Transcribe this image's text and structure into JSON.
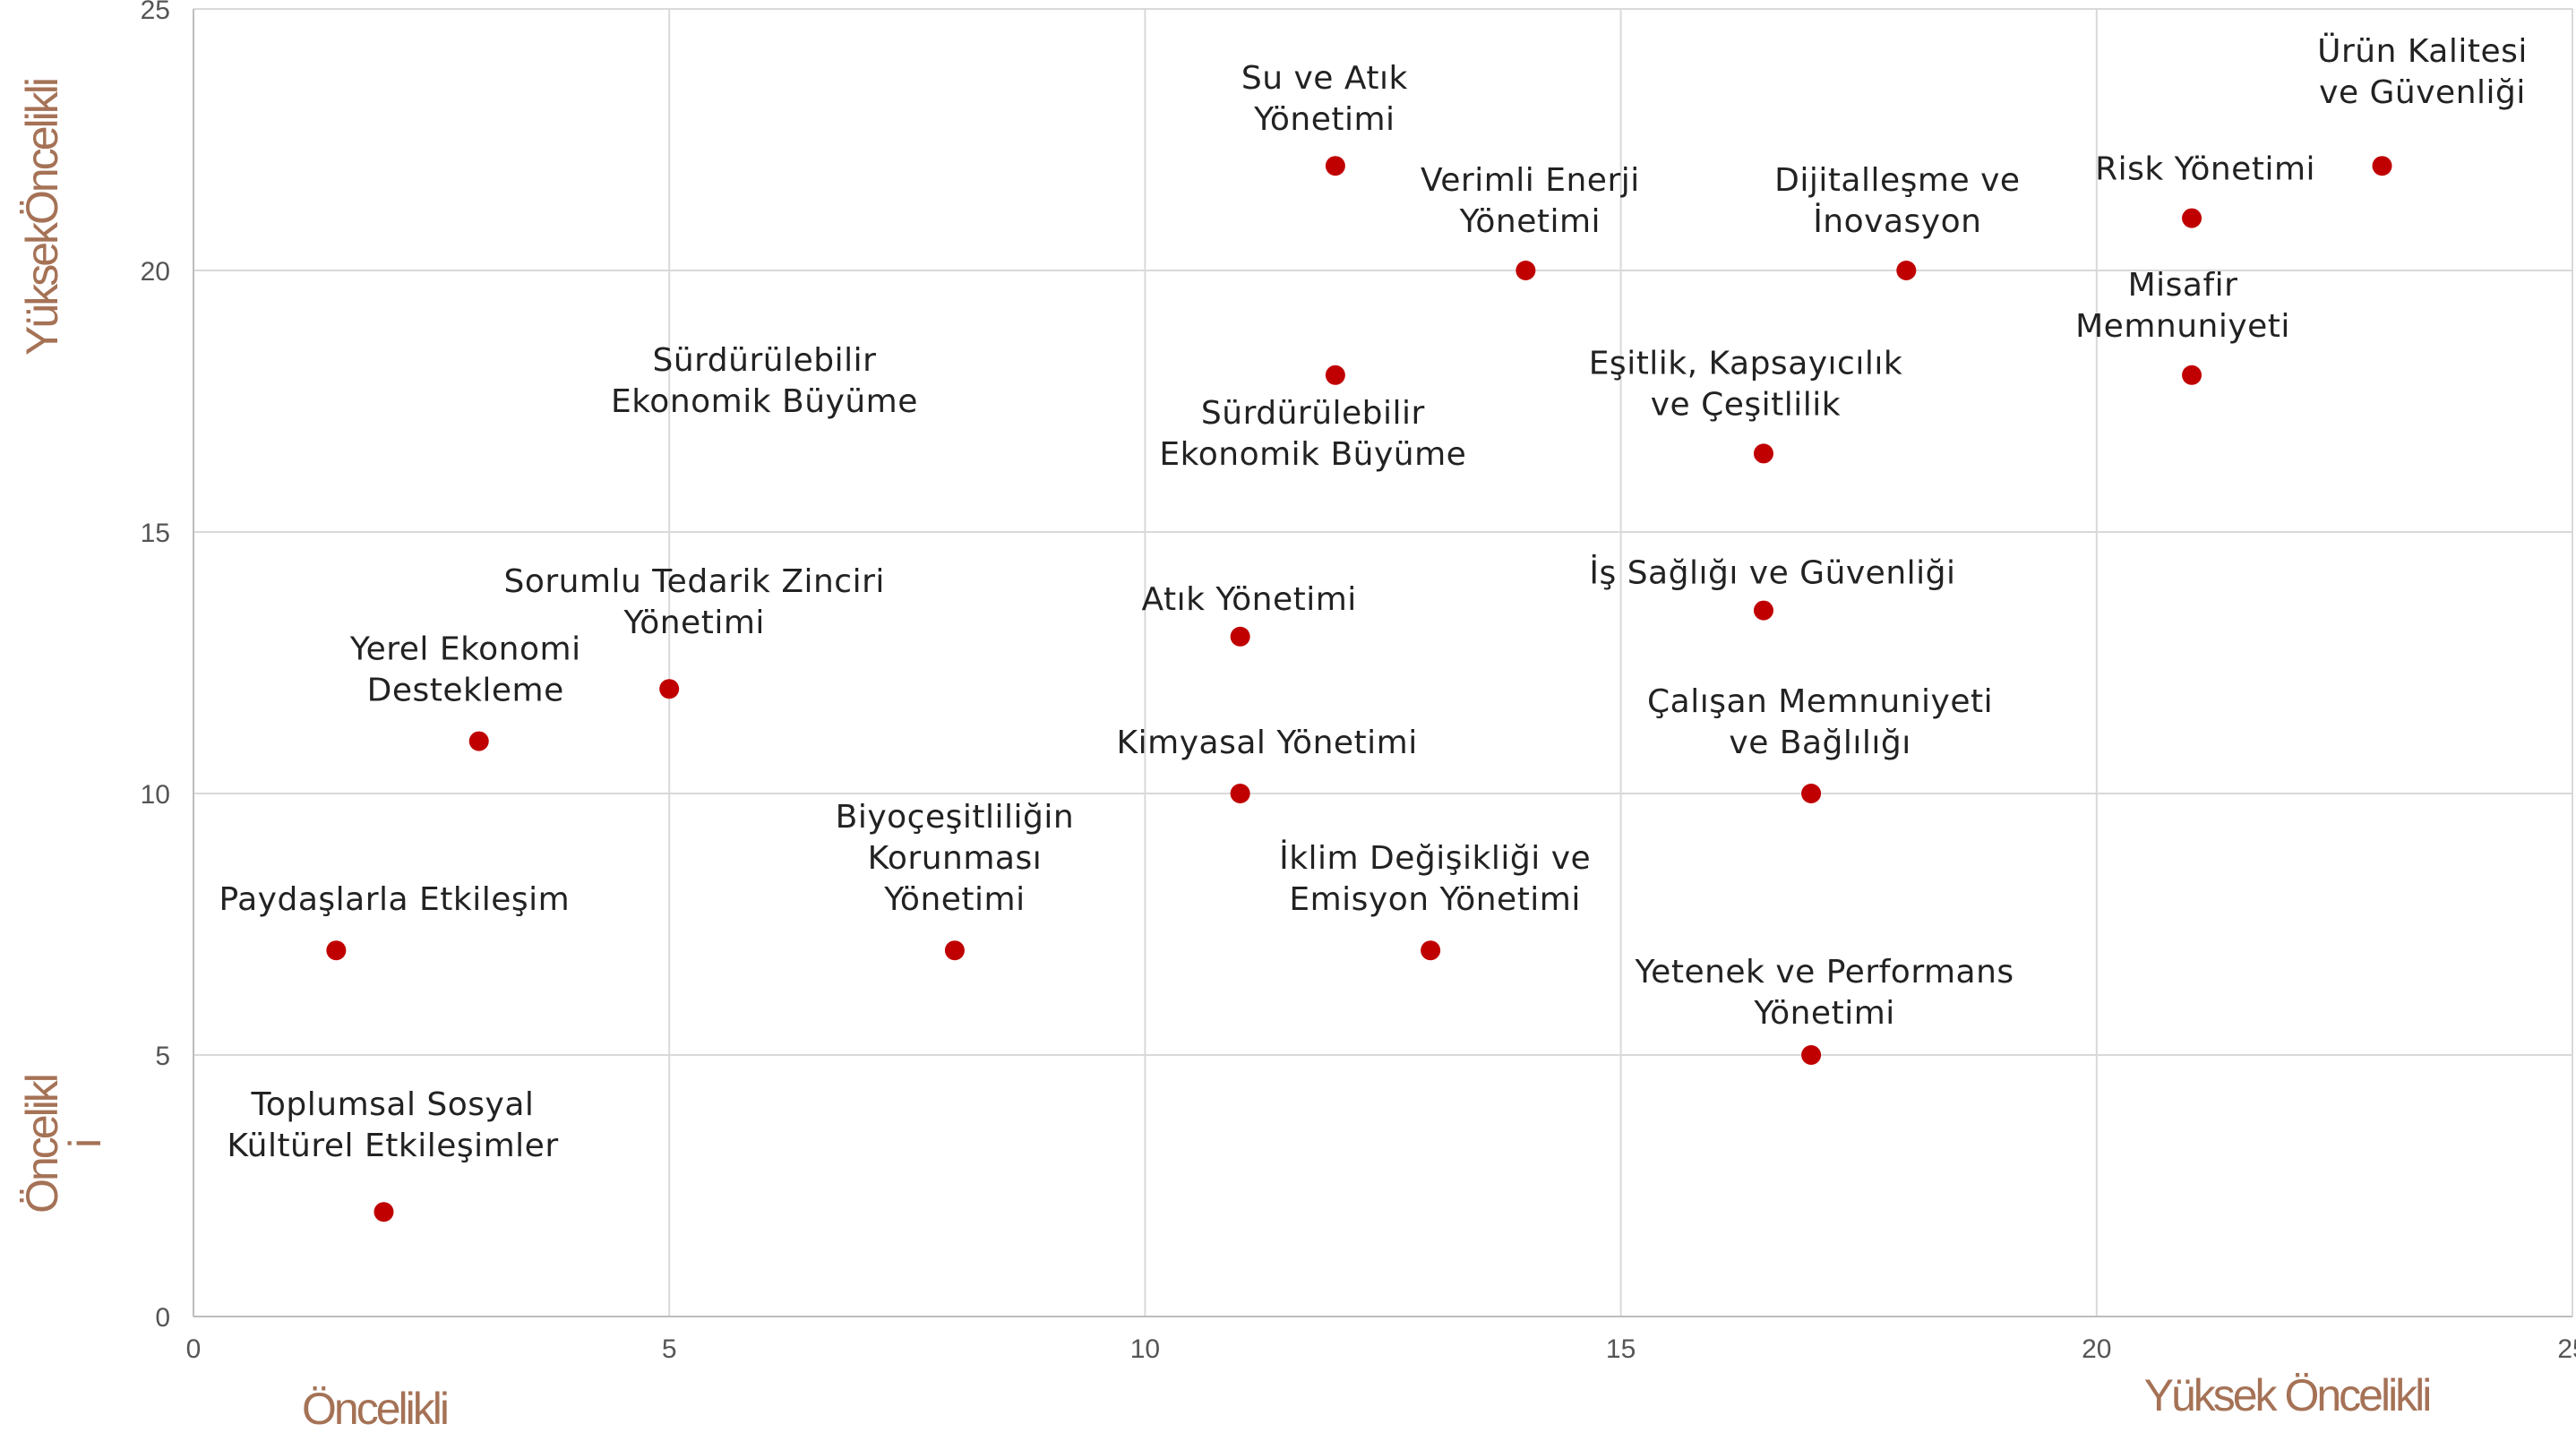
{
  "chart_data": {
    "type": "scatter",
    "title": "",
    "xlabel": "",
    "ylabel": "",
    "xlim": [
      0,
      25
    ],
    "ylim": [
      0,
      25
    ],
    "xticks": [
      0,
      5,
      10,
      15,
      20,
      25
    ],
    "yticks": [
      0,
      5,
      10,
      15,
      20,
      25
    ],
    "grid": true,
    "point_color": "#c00000",
    "label_color": "#a57256",
    "corner_labels": {
      "y_high": "YüksekÖncelikli",
      "y_low": "Öncelikli",
      "x_low": "Öncelikli",
      "x_high": "Yüksek Öncelikli"
    },
    "points": [
      {
        "label": "Ürün Kalitesi\nve Güvenliği",
        "x": 23.0,
        "y": 22.0
      },
      {
        "label": "Su ve Atık\nYönetimi",
        "x": 12.0,
        "y": 22.0
      },
      {
        "label": "Risk Yönetimi",
        "x": 21.0,
        "y": 21.0
      },
      {
        "label": "Verimli Enerji\nYönetimi",
        "x": 14.0,
        "y": 20.0
      },
      {
        "label": "Dijitalleşme ve\nİnovasyon",
        "x": 18.0,
        "y": 20.0
      },
      {
        "label": "Misafir\nMemnuniyeti",
        "x": 21.0,
        "y": 18.0
      },
      {
        "label": "Sürdürülebilir\nEkonomik Büyüme",
        "x": 12.0,
        "y": 18.0
      },
      {
        "label": "Eşitlik, Kapsayıcılık\nve Çeşitlilik",
        "x": 16.5,
        "y": 16.5
      },
      {
        "label": "İş Sağlığı ve Güvenliği",
        "x": 16.5,
        "y": 13.5
      },
      {
        "label": "Atık Yönetimi",
        "x": 11.0,
        "y": 13.0
      },
      {
        "label": "Sorumlu Tedarik Zinciri\nYönetimi",
        "x": 5.0,
        "y": 12.0
      },
      {
        "label": "Yerel Ekonomi\nDestekleme",
        "x": 3.0,
        "y": 11.0
      },
      {
        "label": "Kimyasal Yönetimi",
        "x": 11.0,
        "y": 10.0
      },
      {
        "label": "Çalışan Memnuniyeti\nve Bağlılığı",
        "x": 17.0,
        "y": 10.0
      },
      {
        "label": "Paydaşlarla Etkileşim",
        "x": 1.5,
        "y": 7.0
      },
      {
        "label": "Biyoçeşitliliğin\nKorunması\nYönetimi",
        "x": 8.0,
        "y": 7.0
      },
      {
        "label": "İklim Değişikliği ve\nEmisyon Yönetimi",
        "x": 13.0,
        "y": 7.0
      },
      {
        "label": "Yetenek ve Performans\nYönetimi",
        "x": 17.0,
        "y": 5.0
      },
      {
        "label": "Toplumsal Sosyal\nKültürel Etkileşimler",
        "x": 2.0,
        "y": 2.0
      }
    ],
    "annotations": [
      {
        "text": "Sürdürülebilir\nEkonomik Büyüme"
      }
    ]
  }
}
